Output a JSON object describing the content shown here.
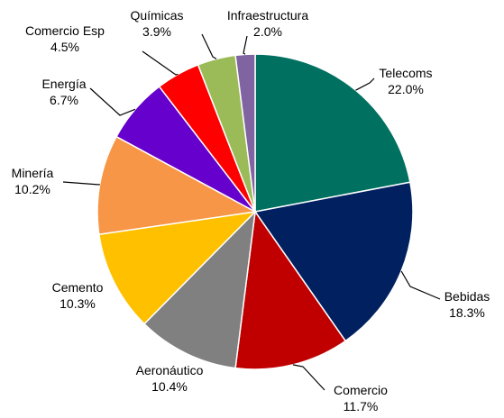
{
  "chart_data": {
    "type": "pie",
    "title": "",
    "start_angle_deg": 0,
    "direction": "clockwise",
    "legend": "none",
    "slices": [
      {
        "label": "Telecoms",
        "value": 22.0,
        "value_label": "22.0%",
        "color": "#007060"
      },
      {
        "label": "Bebidas",
        "value": 18.3,
        "value_label": "18.3%",
        "color": "#002060"
      },
      {
        "label": "Comercio",
        "value": 11.7,
        "value_label": "11.7%",
        "color": "#C00000"
      },
      {
        "label": "Aeronáutico",
        "value": 10.4,
        "value_label": "10.4%",
        "color": "#808080"
      },
      {
        "label": "Cemento",
        "value": 10.3,
        "value_label": "10.3%",
        "color": "#FFC000"
      },
      {
        "label": "Minería",
        "value": 10.2,
        "value_label": "10.2%",
        "color": "#F79646"
      },
      {
        "label": "Energía",
        "value": 6.7,
        "value_label": "6.7%",
        "color": "#6600CC"
      },
      {
        "label": "Comercio Esp",
        "value": 4.5,
        "value_label": "4.5%",
        "color": "#FF0000"
      },
      {
        "label": "Químicas",
        "value": 3.9,
        "value_label": "3.9%",
        "color": "#9BBB59"
      },
      {
        "label": "Infraestructura",
        "value": 2.0,
        "value_label": "2.0%",
        "color": "#8064A2"
      }
    ]
  }
}
